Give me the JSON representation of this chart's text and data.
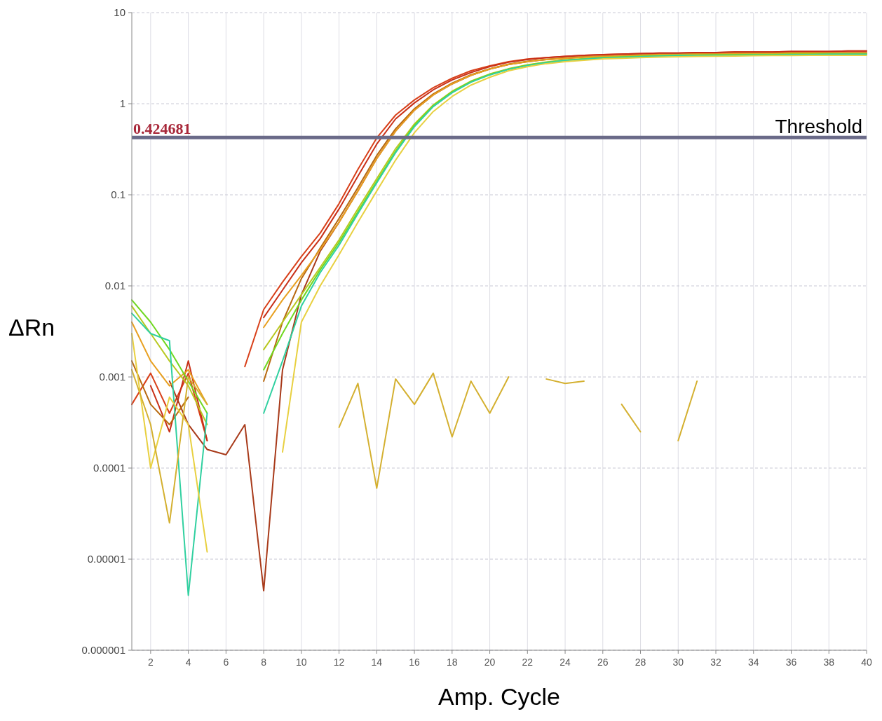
{
  "chart_data": {
    "type": "line",
    "xlabel": "Amp. Cycle",
    "ylabel": "ΔRn",
    "log": "y",
    "grid": true,
    "marker": "none",
    "line_style": "solid",
    "x": [
      1,
      2,
      3,
      4,
      5,
      6,
      7,
      8,
      9,
      10,
      11,
      12,
      13,
      14,
      15,
      16,
      17,
      18,
      19,
      20,
      21,
      22,
      23,
      24,
      25,
      26,
      27,
      28,
      29,
      30,
      31,
      32,
      33,
      34,
      35,
      36,
      37,
      38,
      39,
      40
    ],
    "xlim": [
      1,
      40
    ],
    "xticks": [
      2,
      4,
      6,
      8,
      10,
      12,
      14,
      16,
      18,
      20,
      22,
      24,
      26,
      28,
      30,
      32,
      34,
      36,
      38,
      40
    ],
    "ylim": [
      1e-06,
      10
    ],
    "yticks": [
      {
        "value": 1e-06,
        "label": "0.000001"
      },
      {
        "value": 1e-05,
        "label": "0.00001"
      },
      0.0001,
      0.001,
      0.01,
      0.1,
      1,
      10
    ],
    "annotations": [
      {
        "text": "0.424681",
        "x": 1,
        "y": 0.424681
      }
    ],
    "ref_lines": [
      {
        "axis": "y",
        "value": 0.424681,
        "label": "Threshold",
        "color": "#6a6a88"
      }
    ],
    "series": [
      {
        "color": "#d8401a",
        "values": [
          0.0005,
          0.0011,
          0.0004,
          0.0011,
          0.0002,
          null,
          0.0013,
          0.0055,
          0.011,
          0.021,
          0.038,
          0.08,
          0.19,
          0.42,
          0.75,
          1.1,
          1.5,
          1.9,
          2.3,
          2.6,
          2.9,
          3.1,
          3.2,
          3.3,
          3.4,
          3.45,
          3.5,
          3.55,
          3.6,
          3.6,
          3.65,
          3.65,
          3.7,
          3.7,
          3.7,
          3.75,
          3.75,
          3.75,
          3.8,
          3.8
        ]
      },
      {
        "color": "#c83018",
        "values": [
          null,
          0.0008,
          0.00025,
          0.0015,
          0.0002,
          null,
          null,
          0.0045,
          0.009,
          0.018,
          0.033,
          0.07,
          0.16,
          0.36,
          0.68,
          1.02,
          1.42,
          1.82,
          2.2,
          2.55,
          2.85,
          3.05,
          3.2,
          3.3,
          3.4,
          3.45,
          3.5,
          3.55,
          3.6,
          3.6,
          3.65,
          3.65,
          3.7,
          3.7,
          3.7,
          3.75,
          3.75,
          3.75,
          3.8,
          3.8
        ]
      },
      {
        "color": "#a83a1a",
        "values": [
          null,
          null,
          0.0009,
          0.0003,
          0.00016,
          0.00014,
          0.0003,
          4.5e-06,
          0.0012,
          0.008,
          0.024,
          0.05,
          0.11,
          0.25,
          0.5,
          0.85,
          1.25,
          1.65,
          2.05,
          2.4,
          2.7,
          2.9,
          3.05,
          3.15,
          3.25,
          3.3,
          3.35,
          3.4,
          3.45,
          3.45,
          3.5,
          3.5,
          3.55,
          3.55,
          3.55,
          3.6,
          3.6,
          3.6,
          3.6,
          3.6
        ]
      },
      {
        "color": "#b86a10",
        "values": [
          0.0015,
          0.0005,
          0.0003,
          0.0006,
          null,
          null,
          null,
          0.0009,
          0.004,
          0.012,
          0.026,
          0.055,
          0.12,
          0.27,
          0.53,
          0.88,
          1.28,
          1.68,
          2.08,
          2.42,
          2.72,
          2.92,
          3.07,
          3.17,
          3.27,
          3.32,
          3.37,
          3.42,
          3.47,
          3.47,
          3.52,
          3.52,
          3.57,
          3.57,
          3.57,
          3.62,
          3.62,
          3.62,
          3.62,
          3.62
        ]
      },
      {
        "color": "#e8a020",
        "values": [
          0.004,
          0.0015,
          0.0008,
          0.0012,
          0.0005,
          null,
          null,
          0.0035,
          0.007,
          0.013,
          0.025,
          0.05,
          0.11,
          0.25,
          0.5,
          0.85,
          1.25,
          1.65,
          2.05,
          2.4,
          2.7,
          2.9,
          3.05,
          3.15,
          3.25,
          3.3,
          3.35,
          3.4,
          3.45,
          3.45,
          3.5,
          3.5,
          3.55,
          3.55,
          3.55,
          3.6,
          3.6,
          3.6,
          3.6,
          3.6
        ]
      },
      {
        "color": "#b8c820",
        "values": [
          0.006,
          0.003,
          0.0015,
          0.0008,
          0.0003,
          null,
          null,
          0.002,
          0.004,
          0.008,
          0.016,
          0.032,
          0.07,
          0.15,
          0.32,
          0.6,
          0.97,
          1.37,
          1.77,
          2.12,
          2.42,
          2.67,
          2.87,
          3.02,
          3.12,
          3.22,
          3.27,
          3.32,
          3.37,
          3.42,
          3.42,
          3.45,
          3.45,
          3.48,
          3.48,
          3.5,
          3.5,
          3.5,
          3.5,
          3.5
        ]
      },
      {
        "color": "#70d820",
        "values": [
          0.007,
          0.004,
          0.002,
          0.0009,
          0.0004,
          null,
          null,
          0.0012,
          0.003,
          0.007,
          0.015,
          0.03,
          0.065,
          0.14,
          0.3,
          0.58,
          0.95,
          1.35,
          1.75,
          2.1,
          2.4,
          2.65,
          2.85,
          3.0,
          3.1,
          3.2,
          3.25,
          3.3,
          3.35,
          3.4,
          3.4,
          3.42,
          3.42,
          3.45,
          3.45,
          3.48,
          3.48,
          3.5,
          3.5,
          3.5
        ]
      },
      {
        "color": "#30d0a0",
        "values": [
          0.005,
          0.003,
          0.0025,
          4e-06,
          0.0004,
          null,
          null,
          0.0004,
          0.0015,
          0.006,
          0.014,
          0.028,
          0.062,
          0.135,
          0.29,
          0.56,
          0.93,
          1.32,
          1.72,
          2.07,
          2.38,
          2.62,
          2.82,
          2.98,
          3.08,
          3.18,
          3.23,
          3.28,
          3.33,
          3.38,
          3.38,
          3.4,
          3.4,
          3.43,
          3.43,
          3.46,
          3.46,
          3.48,
          3.48,
          3.48
        ]
      },
      {
        "color": "#e8d040",
        "values": [
          0.003,
          0.0001,
          0.0006,
          0.0003,
          1.2e-05,
          null,
          null,
          null,
          0.00015,
          0.004,
          0.01,
          0.022,
          0.05,
          0.11,
          0.24,
          0.48,
          0.82,
          1.2,
          1.6,
          1.95,
          2.3,
          2.55,
          2.75,
          2.9,
          3.0,
          3.1,
          3.15,
          3.2,
          3.25,
          3.28,
          3.3,
          3.32,
          3.34,
          3.36,
          3.38,
          3.38,
          3.4,
          3.4,
          3.4,
          3.4
        ]
      },
      {
        "color": "#d4b030",
        "values": [
          0.0012,
          0.0003,
          2.5e-05,
          0.001,
          0.0005,
          null,
          null,
          null,
          null,
          null,
          null,
          0.00028,
          0.00085,
          6e-05,
          0.00095,
          0.0005,
          0.0011,
          0.00022,
          0.0009,
          0.0004,
          0.001,
          null,
          0.00095,
          0.00085,
          0.0009,
          null,
          0.0005,
          0.00025,
          null,
          0.0002,
          0.0009,
          null,
          null,
          null,
          null,
          null,
          null,
          null,
          null,
          null
        ]
      }
    ]
  }
}
